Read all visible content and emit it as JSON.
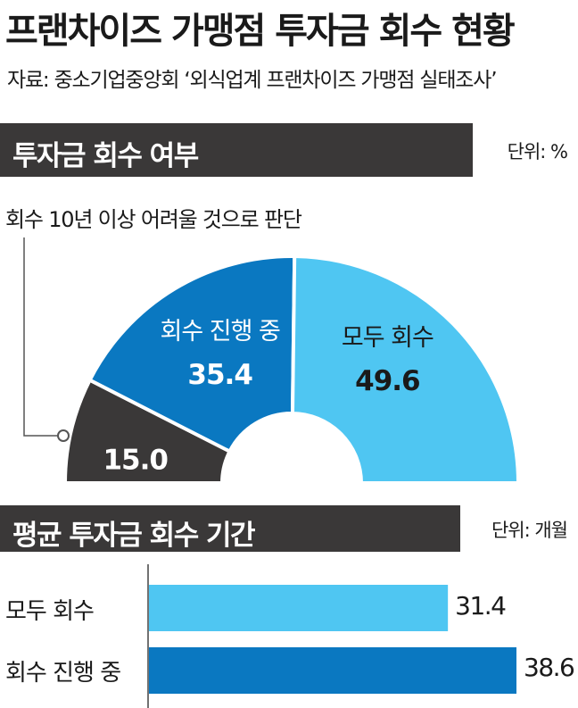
{
  "title": "프랜차이즈 가맹점 투자금 회수 현황",
  "source": "자료: 중소기업중앙회 ‘외식업계 프랜차이즈 가맹점 실태조사’",
  "chart_data": [
    {
      "type": "pie",
      "title": "투자금 회수 여부",
      "unit": "단위: %",
      "annotation": "회수 10년 이상 어려울 것으로 판단",
      "categories": [
        "회수 10년 이상 어려울 것으로 판단",
        "회수 진행 중",
        "모두 회수"
      ],
      "labels": [
        "",
        "회수 진행 중",
        "모두 회수"
      ],
      "values": [
        15.0,
        35.4,
        49.6
      ],
      "value_labels": [
        "15.0",
        "35.4",
        "49.6"
      ],
      "colors": [
        "#3a3838",
        "#0a78c1",
        "#4fc6f2"
      ]
    },
    {
      "type": "bar",
      "title": "평균 투자금 회수 기간",
      "unit": "단위: 개월",
      "categories": [
        "모두 회수",
        "회수 진행 중"
      ],
      "values": [
        31.4,
        38.6
      ],
      "value_labels": [
        "31.4",
        "38.6"
      ],
      "colors": [
        "#4fc6f2",
        "#0a78c1"
      ]
    }
  ]
}
